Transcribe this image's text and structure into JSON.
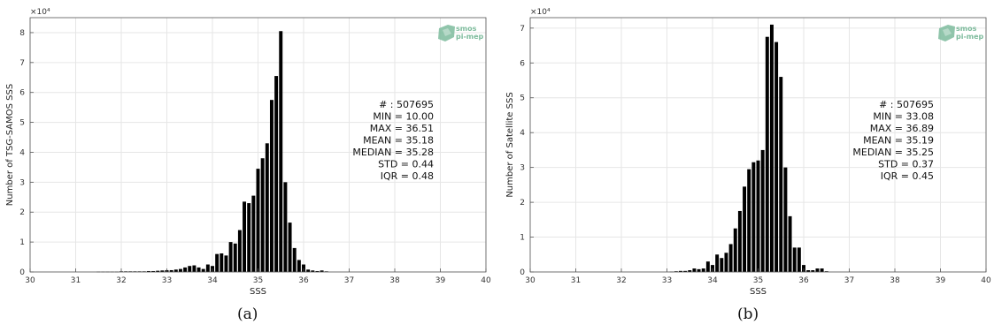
{
  "panels": [
    {
      "id": "a",
      "caption": "(a)",
      "logo": {
        "line1": "smos",
        "line2": "pi-mep",
        "color": "#7dbb9c"
      },
      "stats": [
        "# : 507695",
        "MIN = 10.00",
        "MAX =  36.51",
        "MEAN = 35.18",
        "MEDIAN = 35.28",
        "STD = 0.44",
        "IQR = 0.48"
      ]
    },
    {
      "id": "b",
      "caption": "(b)",
      "logo": {
        "line1": "smos",
        "line2": "pi-mep",
        "color": "#7dbb9c"
      },
      "stats": [
        "# : 507695",
        "MIN = 33.08",
        "MAX =  36.89",
        "MEAN = 35.19",
        "MEDIAN = 35.25",
        "STD = 0.37",
        "IQR = 0.45"
      ]
    }
  ],
  "chart_data": [
    {
      "type": "bar",
      "xlabel": "SSS",
      "ylabel": "Number of TSG-SAMOS SSS",
      "y_multiplier_label": "×10⁴",
      "xlim": [
        30,
        40
      ],
      "ylim": [
        0,
        8.5
      ],
      "xticks": [
        "30",
        "31",
        "32",
        "33",
        "34",
        "35",
        "36",
        "37",
        "38",
        "39",
        "40"
      ],
      "yticks": [
        "0",
        "1",
        "2",
        "3",
        "4",
        "5",
        "6",
        "7",
        "8"
      ],
      "grid": true,
      "bar_color": "#000000",
      "bin_width": 0.1,
      "series": [
        {
          "x": [
            31.5,
            31.6,
            31.7,
            31.8,
            31.9,
            32.0,
            32.1,
            32.2,
            32.3,
            32.4,
            32.5,
            32.6,
            32.7,
            32.8,
            32.9,
            33.0,
            33.1,
            33.2,
            33.3,
            33.4,
            33.5,
            33.6,
            33.7,
            33.8,
            33.9,
            34.0,
            34.1,
            34.2,
            34.3,
            34.4,
            34.5,
            34.6,
            34.7,
            34.8,
            34.9,
            35.0,
            35.1,
            35.2,
            35.3,
            35.4,
            35.5,
            35.6,
            35.7,
            35.8,
            35.9,
            36.0,
            36.1,
            36.2,
            36.3,
            36.4,
            36.5
          ],
          "values": [
            0.01,
            0.01,
            0.01,
            0.01,
            0.01,
            0.02,
            0.02,
            0.02,
            0.02,
            0.02,
            0.02,
            0.03,
            0.03,
            0.04,
            0.05,
            0.06,
            0.06,
            0.08,
            0.1,
            0.15,
            0.2,
            0.22,
            0.15,
            0.1,
            0.25,
            0.2,
            0.6,
            0.62,
            0.55,
            1.0,
            0.95,
            1.4,
            2.35,
            2.3,
            2.55,
            3.45,
            3.8,
            4.3,
            5.75,
            6.55,
            8.05,
            3.0,
            1.65,
            0.8,
            0.4,
            0.25,
            0.08,
            0.05,
            0.03,
            0.05,
            0.02
          ]
        }
      ]
    },
    {
      "type": "bar",
      "xlabel": "SSS",
      "ylabel": "Number of Satellite SSS",
      "y_multiplier_label": "×10⁴",
      "xlim": [
        30,
        40
      ],
      "ylim": [
        0,
        7.3
      ],
      "xticks": [
        "30",
        "31",
        "32",
        "33",
        "34",
        "35",
        "36",
        "37",
        "38",
        "39",
        "40"
      ],
      "yticks": [
        "0",
        "1",
        "2",
        "3",
        "4",
        "5",
        "6",
        "7"
      ],
      "grid": true,
      "bar_color": "#000000",
      "bin_width": 0.1,
      "series": [
        {
          "x": [
            33.1,
            33.2,
            33.3,
            33.4,
            33.5,
            33.6,
            33.7,
            33.8,
            33.9,
            34.0,
            34.1,
            34.2,
            34.3,
            34.4,
            34.5,
            34.6,
            34.7,
            34.8,
            34.9,
            35.0,
            35.1,
            35.2,
            35.3,
            35.4,
            35.5,
            35.6,
            35.7,
            35.8,
            35.9,
            36.0,
            36.1,
            36.2,
            36.3,
            36.4,
            36.5
          ],
          "values": [
            0.01,
            0.02,
            0.03,
            0.03,
            0.05,
            0.1,
            0.08,
            0.1,
            0.3,
            0.2,
            0.5,
            0.4,
            0.55,
            0.8,
            1.25,
            1.75,
            2.45,
            2.95,
            3.15,
            3.2,
            3.5,
            6.75,
            7.1,
            6.6,
            5.6,
            3.0,
            1.6,
            0.7,
            0.7,
            0.2,
            0.05,
            0.05,
            0.1,
            0.1,
            0.02
          ]
        }
      ]
    }
  ]
}
